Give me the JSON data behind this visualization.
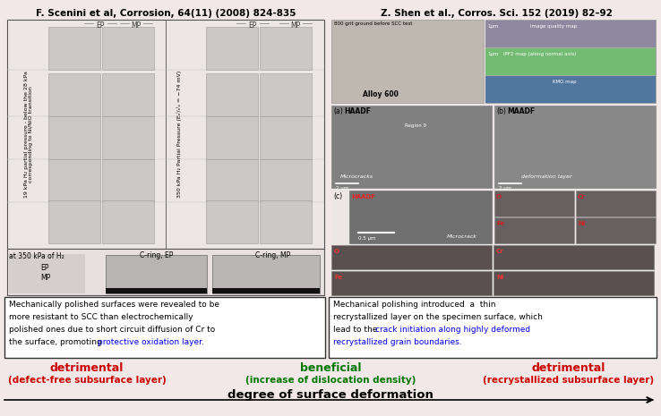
{
  "bg_color": "#f2e8e8",
  "fig_width": 7.38,
  "fig_height": 4.65,
  "left_title": "F. Scenini et al, Corrosion, 64(11) (2008) 824-835",
  "right_title": "Z. Shen et al., Corros. Sci. 152 (2019) 82–92",
  "left_box_text_line1": "Mechanically polished surfaces were revealed to be",
  "left_box_text_line2": "more resistant to SCC than electrochemically",
  "left_box_text_line3": "polished ones due to short circuit diffusion of Cr to",
  "left_box_text_line4": "the surface, promoting ",
  "left_box_highlight": "protective oxidation layer.",
  "left_box_highlight_color": "#0000ee",
  "right_box_text_line1": "Mechanical polishing introduced  a  thin",
  "right_box_text_line2": "recrystallized layer on the specimen surface, which",
  "right_box_text_line3": "lead to the ",
  "right_box_highlight_line1": "crack initiation along highly deformed",
  "right_box_highlight_line2": "recrystallized grain boundaries.",
  "right_box_highlight_color": "#0000ee",
  "label_detrimental_left": "detrimental",
  "label_detrimental_left_sub": "(defect-free subsurface layer)",
  "label_beneficial": "beneficial",
  "label_beneficial_sub": "(increase of dislocation density)",
  "label_detrimental_right": "detrimental",
  "label_detrimental_right_sub": "(recrystallized subsurface layer)",
  "label_color_red": "#cc0000",
  "label_color_green": "#007700",
  "arrow_label": "degree of surface deformation",
  "cell_color_light": "#d8d0d0",
  "cell_color_gray": "#b0b0b0",
  "cell_color_dark": "#888888",
  "right_top_color": "#c8b8b0",
  "right_top_color2": "#90c890",
  "right_mid_color": "#909090",
  "right_dark_color": "#606060"
}
